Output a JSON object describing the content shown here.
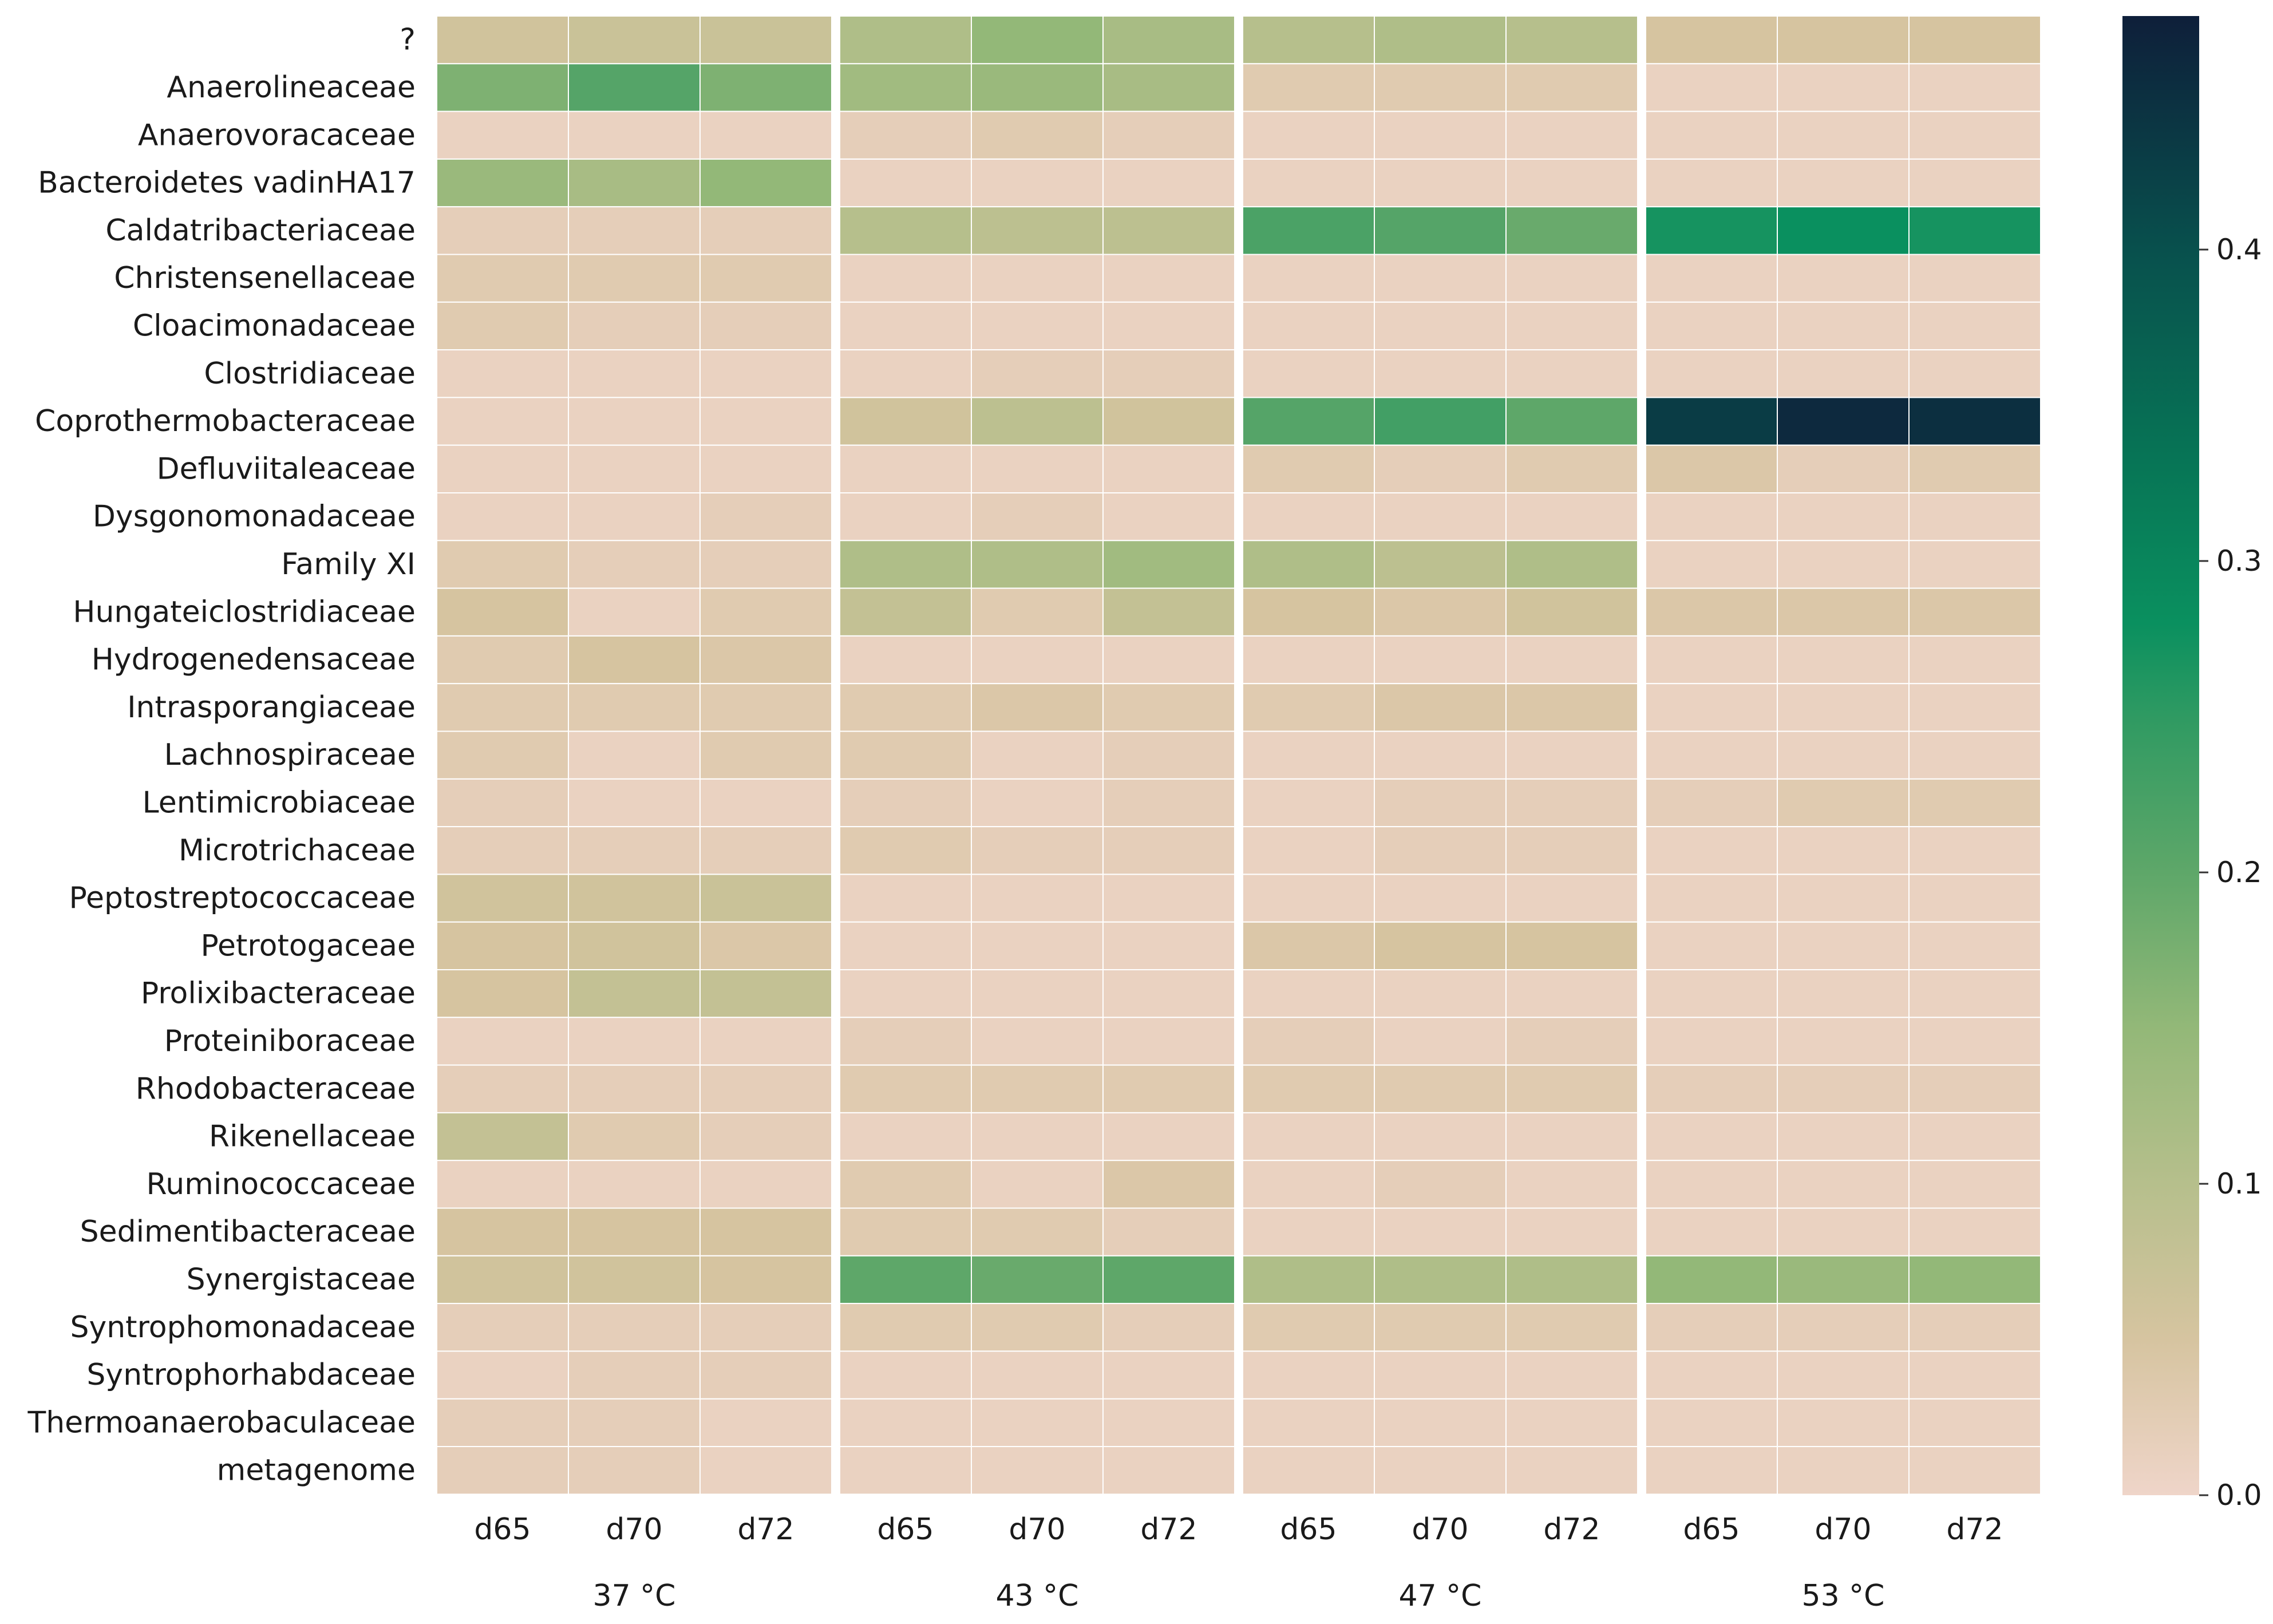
{
  "chart_data": {
    "type": "heatmap",
    "title": "",
    "xlabel": "",
    "ylabel": "",
    "rows": [
      "?",
      "Anaerolineaceae",
      "Anaerovoracaceae",
      "Bacteroidetes vadinHA17",
      "Caldatribacteriaceae",
      "Christensenellaceae",
      "Cloacimonadaceae",
      "Clostridiaceae",
      "Coprothermobacteraceae",
      "Defluviitaleaceae",
      "Dysgonomonadaceae",
      "Family XI",
      "Hungateiclostridiaceae",
      "Hydrogenedensaceae",
      "Intrasporangiaceae",
      "Lachnospiraceae",
      "Lentimicrobiaceae",
      "Microtrichaceae",
      "Peptostreptococcaceae",
      "Petrotogaceae",
      "Prolixibacteraceae",
      "Proteiniboraceae",
      "Rhodobacteraceae",
      "Rikenellaceae",
      "Ruminococcaceae",
      "Sedimentibacteraceae",
      "Synergistaceae",
      "Syntrophomonadaceae",
      "Syntrophorhabdaceae",
      "Thermoanaerobaculaceae",
      "metagenome"
    ],
    "groups": [
      {
        "name": "37 °C",
        "columns": [
          "d65",
          "d70",
          "d72"
        ]
      },
      {
        "name": "43 °C",
        "columns": [
          "d65",
          "d70",
          "d72"
        ]
      },
      {
        "name": "47 °C",
        "columns": [
          "d65",
          "d70",
          "d72"
        ]
      },
      {
        "name": "53 °C",
        "columns": [
          "d65",
          "d70",
          "d72"
        ]
      }
    ],
    "values": [
      [
        0.06,
        0.07,
        0.07,
        0.11,
        0.15,
        0.12,
        0.1,
        0.11,
        0.1,
        0.05,
        0.05,
        0.05
      ],
      [
        0.17,
        0.21,
        0.17,
        0.13,
        0.14,
        0.12,
        0.03,
        0.03,
        0.03,
        0.01,
        0.01,
        0.01
      ],
      [
        0.01,
        0.01,
        0.01,
        0.02,
        0.03,
        0.02,
        0.01,
        0.01,
        0.01,
        0.01,
        0.01,
        0.01
      ],
      [
        0.14,
        0.12,
        0.15,
        0.01,
        0.01,
        0.01,
        0.01,
        0.01,
        0.01,
        0.01,
        0.01,
        0.01
      ],
      [
        0.02,
        0.02,
        0.02,
        0.1,
        0.09,
        0.09,
        0.22,
        0.21,
        0.19,
        0.27,
        0.28,
        0.27
      ],
      [
        0.03,
        0.03,
        0.03,
        0.01,
        0.01,
        0.01,
        0.01,
        0.01,
        0.01,
        0.01,
        0.01,
        0.01
      ],
      [
        0.03,
        0.02,
        0.02,
        0.01,
        0.01,
        0.01,
        0.01,
        0.01,
        0.01,
        0.01,
        0.01,
        0.01
      ],
      [
        0.01,
        0.01,
        0.01,
        0.01,
        0.02,
        0.02,
        0.01,
        0.01,
        0.01,
        0.01,
        0.01,
        0.01
      ],
      [
        0.01,
        0.01,
        0.01,
        0.06,
        0.09,
        0.06,
        0.21,
        0.23,
        0.2,
        0.43,
        0.46,
        0.45
      ],
      [
        0.01,
        0.01,
        0.01,
        0.01,
        0.01,
        0.01,
        0.03,
        0.02,
        0.03,
        0.04,
        0.02,
        0.03
      ],
      [
        0.01,
        0.01,
        0.02,
        0.01,
        0.02,
        0.01,
        0.01,
        0.01,
        0.01,
        0.01,
        0.01,
        0.01
      ],
      [
        0.03,
        0.02,
        0.02,
        0.11,
        0.11,
        0.13,
        0.11,
        0.09,
        0.11,
        0.01,
        0.01,
        0.01
      ],
      [
        0.05,
        0.01,
        0.03,
        0.08,
        0.03,
        0.08,
        0.05,
        0.04,
        0.06,
        0.04,
        0.04,
        0.04
      ],
      [
        0.03,
        0.05,
        0.04,
        0.01,
        0.01,
        0.01,
        0.01,
        0.01,
        0.01,
        0.01,
        0.01,
        0.01
      ],
      [
        0.03,
        0.03,
        0.03,
        0.03,
        0.04,
        0.03,
        0.03,
        0.04,
        0.04,
        0.01,
        0.01,
        0.01
      ],
      [
        0.03,
        0.01,
        0.03,
        0.03,
        0.01,
        0.02,
        0.01,
        0.01,
        0.01,
        0.01,
        0.01,
        0.01
      ],
      [
        0.02,
        0.01,
        0.01,
        0.02,
        0.01,
        0.02,
        0.01,
        0.02,
        0.02,
        0.02,
        0.03,
        0.03
      ],
      [
        0.02,
        0.02,
        0.02,
        0.03,
        0.02,
        0.02,
        0.01,
        0.02,
        0.02,
        0.01,
        0.01,
        0.01
      ],
      [
        0.06,
        0.06,
        0.07,
        0.01,
        0.01,
        0.01,
        0.01,
        0.01,
        0.01,
        0.01,
        0.01,
        0.01
      ],
      [
        0.05,
        0.06,
        0.04,
        0.01,
        0.01,
        0.01,
        0.04,
        0.05,
        0.05,
        0.01,
        0.01,
        0.01
      ],
      [
        0.05,
        0.08,
        0.08,
        0.01,
        0.01,
        0.01,
        0.01,
        0.01,
        0.01,
        0.01,
        0.01,
        0.01
      ],
      [
        0.01,
        0.01,
        0.01,
        0.02,
        0.01,
        0.01,
        0.02,
        0.01,
        0.02,
        0.01,
        0.01,
        0.01
      ],
      [
        0.02,
        0.02,
        0.02,
        0.03,
        0.03,
        0.03,
        0.03,
        0.03,
        0.03,
        0.02,
        0.02,
        0.02
      ],
      [
        0.08,
        0.03,
        0.02,
        0.01,
        0.01,
        0.01,
        0.01,
        0.01,
        0.01,
        0.01,
        0.01,
        0.01
      ],
      [
        0.01,
        0.01,
        0.01,
        0.03,
        0.01,
        0.04,
        0.01,
        0.02,
        0.01,
        0.01,
        0.01,
        0.01
      ],
      [
        0.05,
        0.05,
        0.05,
        0.03,
        0.03,
        0.02,
        0.01,
        0.01,
        0.01,
        0.01,
        0.01,
        0.01
      ],
      [
        0.06,
        0.06,
        0.05,
        0.2,
        0.19,
        0.2,
        0.11,
        0.11,
        0.11,
        0.15,
        0.14,
        0.15
      ],
      [
        0.02,
        0.02,
        0.02,
        0.03,
        0.03,
        0.02,
        0.03,
        0.03,
        0.03,
        0.02,
        0.02,
        0.02
      ],
      [
        0.01,
        0.02,
        0.02,
        0.01,
        0.01,
        0.01,
        0.01,
        0.01,
        0.01,
        0.01,
        0.01,
        0.01
      ],
      [
        0.02,
        0.02,
        0.01,
        0.01,
        0.01,
        0.01,
        0.01,
        0.01,
        0.01,
        0.01,
        0.01,
        0.01
      ],
      [
        0.02,
        0.02,
        0.01,
        0.01,
        0.01,
        0.01,
        0.01,
        0.01,
        0.01,
        0.01,
        0.01,
        0.01
      ]
    ],
    "colorbar": {
      "min": 0.0,
      "max": 0.475,
      "ticks": [
        0.0,
        0.1,
        0.2,
        0.3,
        0.4
      ],
      "tick_labels": [
        "0.0",
        "0.1",
        "0.2",
        "0.3",
        "0.4"
      ],
      "colormap_stops": [
        {
          "value": 0.0,
          "color": "#efd5c9"
        },
        {
          "value": 0.05,
          "color": "#d6c4a0"
        },
        {
          "value": 0.1,
          "color": "#b6bf8c"
        },
        {
          "value": 0.15,
          "color": "#93b878"
        },
        {
          "value": 0.2,
          "color": "#5ea769"
        },
        {
          "value": 0.25,
          "color": "#2f9a62"
        },
        {
          "value": 0.28,
          "color": "#0a905f"
        },
        {
          "value": 0.33,
          "color": "#077656"
        },
        {
          "value": 0.4,
          "color": "#08504d"
        },
        {
          "value": 0.475,
          "color": "#0e1f3a"
        }
      ]
    }
  }
}
